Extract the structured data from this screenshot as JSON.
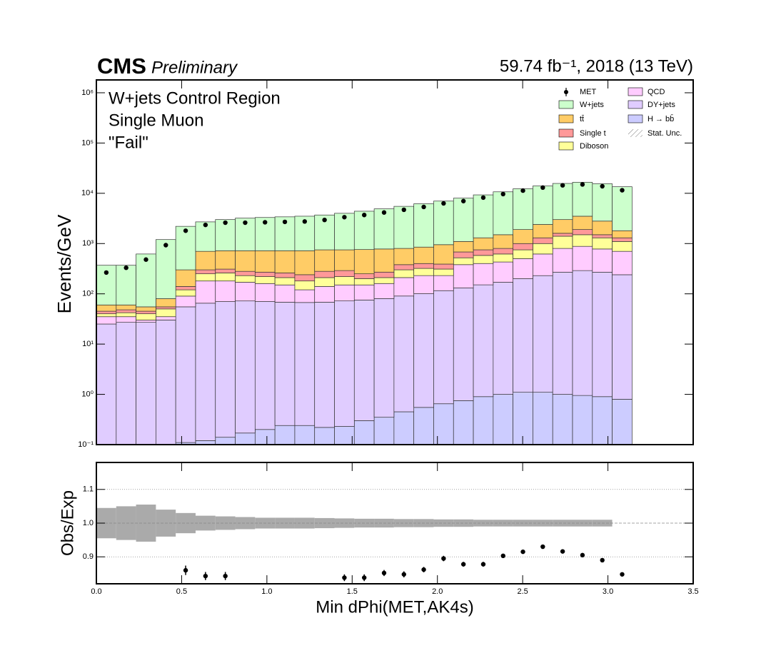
{
  "chart_data": [
    {
      "type": "stacked-histogram",
      "cms_label": "CMS",
      "status": "Preliminary",
      "lumi_label": "59.74 fb⁻¹, 2018 (13 TeV)",
      "annotations": [
        "W+jets Control Region",
        "Single Muon",
        "\"Fail\""
      ],
      "ylabel": "Events/GeV",
      "log_y": true,
      "legend": "upper right",
      "bins": [
        0,
        0.1164,
        0.2327,
        0.3491,
        0.4654,
        0.5818,
        0.6981,
        0.8145,
        0.9308,
        1.0472,
        1.1636,
        1.2799,
        1.3963,
        1.5126,
        1.629,
        1.7453,
        1.8617,
        1.978,
        2.0944,
        2.2108,
        2.3271,
        2.4435,
        2.5598,
        2.6762,
        2.7925,
        2.9089,
        3.0252,
        3.1416
      ],
      "xlim": [
        0,
        3.5
      ],
      "xticks": [
        0,
        0.5,
        1,
        1.5,
        2,
        2.5,
        3,
        3.5
      ],
      "ylim": [
        0.1,
        1800000
      ],
      "yticks": [
        {
          "value": 0.1,
          "label": "10⁻¹"
        },
        {
          "value": 1,
          "label": "10⁰"
        },
        {
          "value": 10,
          "label": "10¹"
        },
        {
          "value": 100,
          "label": "10²"
        },
        {
          "value": 1000,
          "label": "10³"
        },
        {
          "value": 10000,
          "label": "10⁴"
        },
        {
          "value": 100000,
          "label": "10⁵"
        },
        {
          "value": 1000000,
          "label": "10⁶"
        }
      ],
      "data": {
        "name": "MET",
        "color": "#000000",
        "values": [
          265,
          330,
          480,
          930,
          1800,
          2350,
          2600,
          2600,
          2650,
          2700,
          2750,
          2950,
          3350,
          3700,
          4150,
          4700,
          5350,
          6300,
          7000,
          8200,
          9650,
          11300,
          13000,
          14400,
          15000,
          13800,
          11500
        ]
      },
      "series": [
        {
          "name": "W+jets",
          "color": "#ccffcc",
          "values": [
            310,
            310,
            565,
            1120,
            1900,
            2000,
            2280,
            2480,
            2580,
            2680,
            2780,
            2950,
            3250,
            3640,
            4120,
            4700,
            5350,
            6050,
            6900,
            8000,
            9200,
            10400,
            11600,
            12700,
            13100,
            12700,
            11700
          ]
        },
        {
          "name": "tt̄",
          "color": "#ffcc66",
          "values": [
            15,
            12,
            10,
            25,
            160,
            400,
            410,
            440,
            450,
            460,
            480,
            470,
            460,
            510,
            510,
            420,
            450,
            560,
            420,
            550,
            700,
            900,
            1100,
            1400,
            1600,
            1300,
            500
          ]
        },
        {
          "name": "Single t",
          "color": "#ff9999",
          "values": [
            5,
            6,
            5,
            5,
            20,
            50,
            50,
            50,
            50,
            50,
            60,
            70,
            70,
            50,
            60,
            80,
            80,
            80,
            160,
            170,
            180,
            250,
            300,
            200,
            400,
            200,
            200
          ]
        },
        {
          "name": "Diboson",
          "color": "#ffff99",
          "values": [
            5,
            7,
            10,
            15,
            30,
            70,
            80,
            60,
            60,
            60,
            60,
            70,
            70,
            50,
            50,
            90,
            90,
            80,
            140,
            180,
            190,
            250,
            380,
            600,
            620,
            520,
            400
          ]
        },
        {
          "name": "QCD",
          "color": "#ffccff",
          "values": [
            10,
            8,
            3,
            5,
            35,
            115,
            110,
            98,
            90,
            82,
            53,
            72,
            78,
            75,
            80,
            120,
            130,
            115,
            250,
            250,
            260,
            300,
            390,
            530,
            590,
            510,
            460
          ]
        },
        {
          "name": "DY+jets",
          "color": "#e0ccff",
          "values": [
            25,
            27,
            27,
            30,
            55,
            65,
            70,
            72,
            70,
            68,
            67,
            68,
            72,
            75,
            80,
            90,
            100,
            115,
            130,
            150,
            169,
            199,
            229,
            269,
            289,
            269,
            239
          ]
        },
        {
          "name": "H → bb̄",
          "color": "#ccccff",
          "values": [
            0.08,
            0.09,
            0.09,
            0.1,
            0.11,
            0.12,
            0.14,
            0.17,
            0.2,
            0.24,
            0.24,
            0.22,
            0.23,
            0.3,
            0.35,
            0.45,
            0.55,
            0.65,
            0.75,
            0.9,
            1.0,
            1.1,
            1.1,
            1.0,
            0.95,
            0.9,
            0.8
          ]
        }
      ],
      "uncertainty_label": "Stat. Unc."
    },
    {
      "type": "ratio",
      "ylabel": "Obs/Exp",
      "xlabel": "Min dPhi(MET,AK4s)",
      "xlim": [
        0,
        3.5
      ],
      "xticks": [
        {
          "value": 0,
          "label": "0.0"
        },
        {
          "value": 0.5,
          "label": "0.5"
        },
        {
          "value": 1,
          "label": "1.0"
        },
        {
          "value": 1.5,
          "label": "1.5"
        },
        {
          "value": 2,
          "label": "2.0"
        },
        {
          "value": 2.5,
          "label": "2.5"
        },
        {
          "value": 3,
          "label": "3.0"
        },
        {
          "value": 3.5,
          "label": "3.5"
        }
      ],
      "ylim": [
        0.82,
        1.18
      ],
      "yticks": [
        0.9,
        {
          "value": 1,
          "label": "1.0"
        },
        1.1
      ],
      "values": [
        null,
        null,
        null,
        null,
        0.86,
        0.843,
        0.843,
        null,
        null,
        null,
        null,
        null,
        0.838,
        0.838,
        0.852,
        0.848,
        0.862,
        0.895,
        0.878,
        0.878,
        0.903,
        0.915,
        0.93,
        0.916,
        0.905,
        0.89,
        0.848
      ],
      "errors": [
        null,
        null,
        null,
        null,
        0.014,
        0.012,
        0.012,
        null,
        null,
        null,
        null,
        null,
        0.01,
        0.01,
        0.009,
        0.009,
        0.008,
        0.008,
        0.007,
        0.007,
        0.006,
        0.006,
        0.006,
        0.006,
        0.006,
        0.006,
        0.006
      ],
      "unc": [
        0.045,
        0.05,
        0.055,
        0.04,
        0.03,
        0.022,
        0.02,
        0.018,
        0.016,
        0.016,
        0.016,
        0.015,
        0.014,
        0.013,
        0.013,
        0.012,
        0.012,
        0.011,
        0.011,
        0.01,
        0.01,
        0.01,
        0.01,
        0.01,
        0.01,
        0.01,
        null
      ],
      "unc_color": "#aaaaaa"
    }
  ]
}
